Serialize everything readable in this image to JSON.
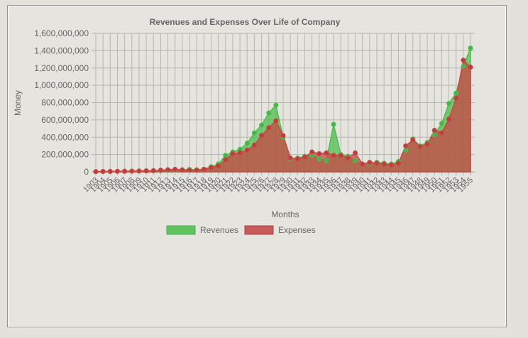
{
  "chart_data": {
    "type": "area",
    "title": "Revenues and Expenses Over Life of Company",
    "xlabel": "Months",
    "ylabel": "Money",
    "ylim": [
      0,
      1600000000
    ],
    "y_ticks": [
      "0",
      "200,000,000",
      "400,000,000",
      "600,000,000",
      "800,000,000",
      "1,000,000,000",
      "1,200,000,000",
      "1,400,000,000",
      "1,600,000,000"
    ],
    "y_tick_values": [
      0,
      200000000,
      400000000,
      600000000,
      800000000,
      1000000000,
      1200000000,
      1400000000,
      1600000000
    ],
    "categories": [
      "1903",
      "1904",
      "1905",
      "1906",
      "1907",
      "1908",
      "1909",
      "1910",
      "1911",
      "1912",
      "1913",
      "1914",
      "1915",
      "1916",
      "1917",
      "1918",
      "1919",
      "1920",
      "1921",
      "1922",
      "1923",
      "1924",
      "1925",
      "1926",
      "1927",
      "1928",
      "1929",
      "1930",
      "1931",
      "1932",
      "1933",
      "1934",
      "1935",
      "1936",
      "1937",
      "1938",
      "1939",
      "1940",
      "1941",
      "1942",
      "1943",
      "1944",
      "1945",
      "1946",
      "1947",
      "1948",
      "1949",
      "1950",
      "1951",
      "1952",
      "1953",
      "1954",
      "1955"
    ],
    "grid": true,
    "legend_position": "bottom",
    "series": [
      {
        "name": "Revenues",
        "color": "#4cbf4c",
        "values": [
          2000000,
          3000000,
          4000000,
          5000000,
          6000000,
          7000000,
          9000000,
          10000000,
          11000000,
          14000000,
          17000000,
          20000000,
          25000000,
          28000000,
          25000000,
          30000000,
          60000000,
          90000000,
          190000000,
          230000000,
          260000000,
          330000000,
          450000000,
          540000000,
          680000000,
          770000000,
          400000000,
          150000000,
          160000000,
          180000000,
          190000000,
          150000000,
          130000000,
          550000000,
          200000000,
          180000000,
          130000000,
          90000000,
          100000000,
          110000000,
          100000000,
          90000000,
          120000000,
          250000000,
          380000000,
          300000000,
          340000000,
          430000000,
          560000000,
          790000000,
          910000000,
          1220000000,
          1430000000
        ]
      },
      {
        "name": "Expenses",
        "color": "#c94646",
        "values": [
          3000000,
          4000000,
          5000000,
          6000000,
          7000000,
          8000000,
          10000000,
          12000000,
          14000000,
          20000000,
          25000000,
          30000000,
          22000000,
          20000000,
          20000000,
          30000000,
          50000000,
          70000000,
          140000000,
          210000000,
          220000000,
          250000000,
          310000000,
          420000000,
          510000000,
          590000000,
          420000000,
          160000000,
          150000000,
          170000000,
          230000000,
          210000000,
          220000000,
          190000000,
          190000000,
          160000000,
          220000000,
          90000000,
          110000000,
          100000000,
          90000000,
          80000000,
          100000000,
          300000000,
          370000000,
          290000000,
          320000000,
          480000000,
          450000000,
          610000000,
          850000000,
          1290000000,
          1210000000
        ]
      }
    ]
  }
}
